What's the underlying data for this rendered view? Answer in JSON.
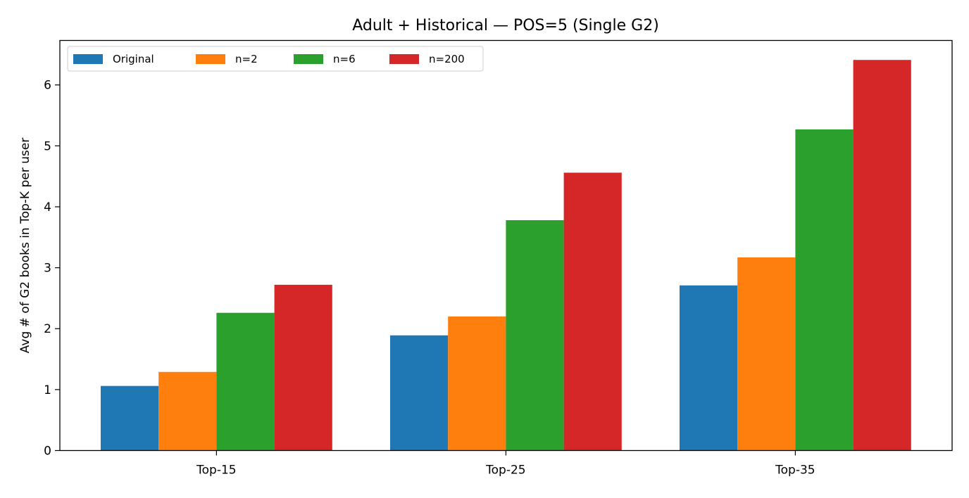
{
  "chart_data": {
    "type": "bar",
    "title": "Adult + Historical — POS=5 (Single G2)",
    "xlabel": "",
    "ylabel": "Avg # of G2 books in Top-K per user",
    "categories": [
      "Top-15",
      "Top-25",
      "Top-35"
    ],
    "series": [
      {
        "name": "Original",
        "color": "#1f77b4",
        "values": [
          1.06,
          1.89,
          2.71
        ]
      },
      {
        "name": "n=2",
        "color": "#ff7f0e",
        "values": [
          1.29,
          2.2,
          3.17
        ]
      },
      {
        "name": "n=6",
        "color": "#2ca02c",
        "values": [
          2.26,
          3.78,
          5.27
        ]
      },
      {
        "name": "n=200",
        "color": "#d62728",
        "values": [
          2.72,
          4.56,
          6.41
        ]
      }
    ],
    "ylim": [
      0,
      6.73
    ],
    "yticks": [
      0,
      1,
      2,
      3,
      4,
      5,
      6
    ],
    "grid": false,
    "legend": {
      "placement": "top-left",
      "columns": 4
    }
  }
}
